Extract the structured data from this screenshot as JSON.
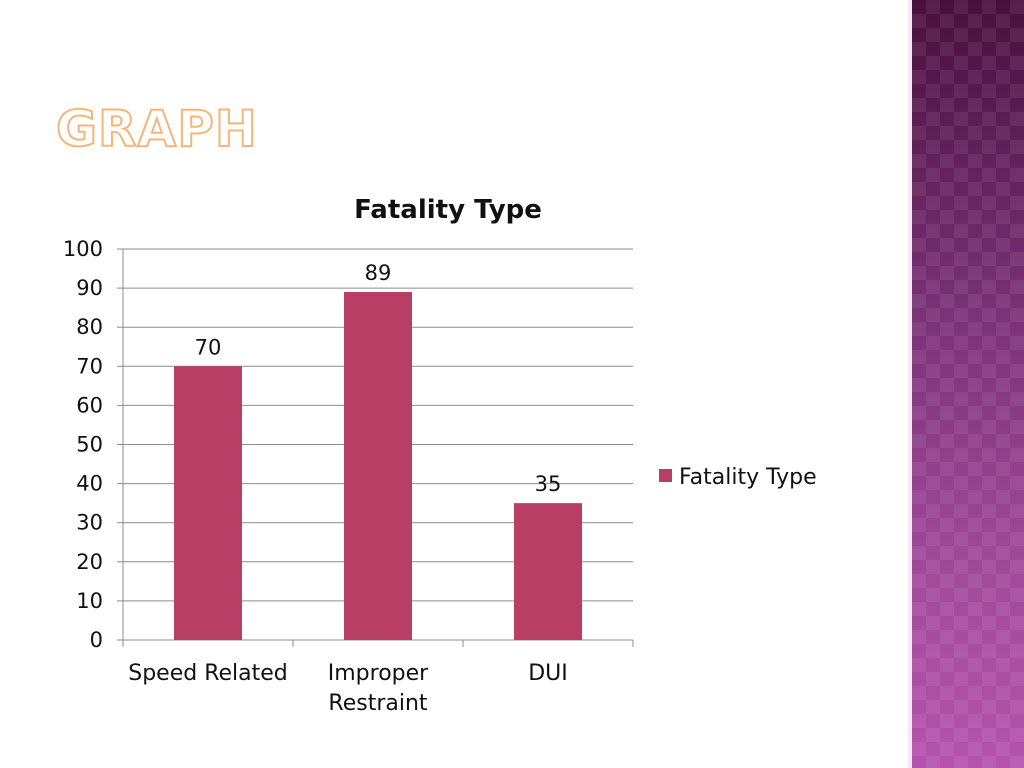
{
  "slide": {
    "title": "GRAPH"
  },
  "chart_data": {
    "type": "bar",
    "title": "Fatality Type",
    "categories": [
      "Speed Related",
      "Improper Restraint",
      "DUI"
    ],
    "category_lines": [
      [
        "Speed Related"
      ],
      [
        "Improper",
        "Restraint"
      ],
      [
        "DUI"
      ]
    ],
    "series": [
      {
        "name": "Fatality Type",
        "values": [
          70,
          89,
          35
        ],
        "color": "#b83e66"
      }
    ],
    "data_labels": [
      "70",
      "89",
      "35"
    ],
    "yticks": [
      0,
      10,
      20,
      30,
      40,
      50,
      60,
      70,
      80,
      90,
      100
    ],
    "ylim": [
      0,
      100
    ],
    "grid": true,
    "legend": "right",
    "xlabel": "",
    "ylabel": ""
  },
  "theme": {
    "title_orange": "#f4b678",
    "panel_purple": "#7a2e74",
    "bar_color": "#b83e66"
  }
}
